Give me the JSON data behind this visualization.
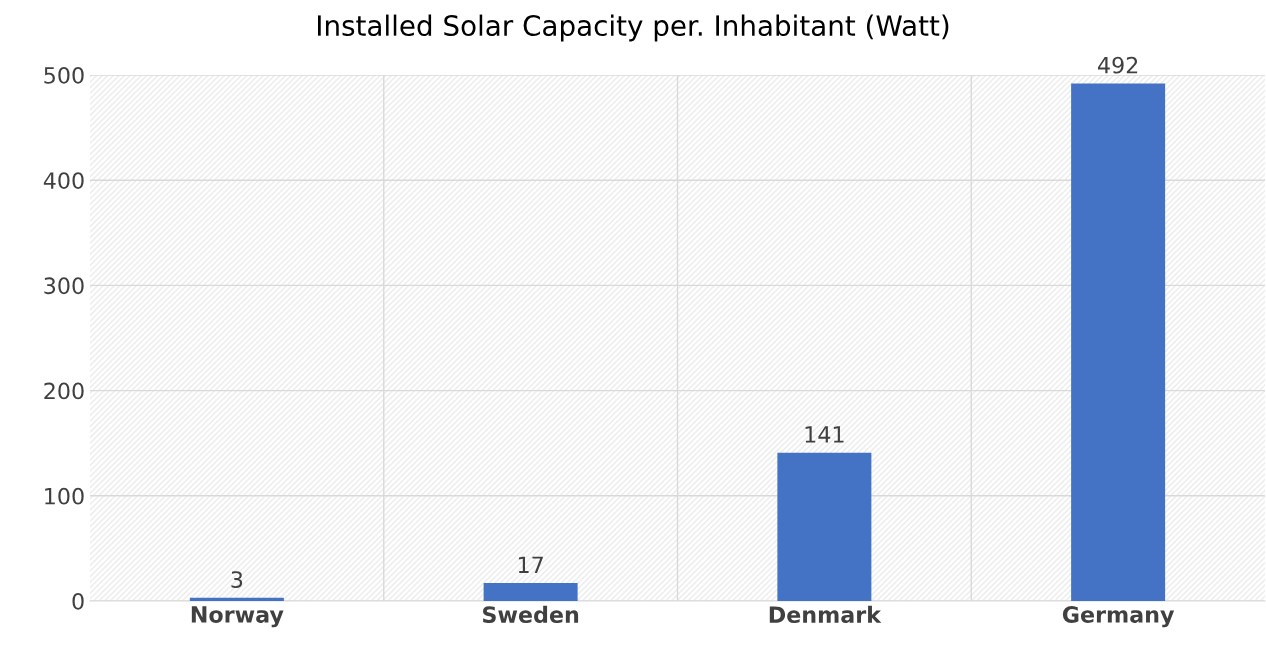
{
  "chart_data": {
    "type": "bar",
    "title": "Installed Solar Capacity per. Inhabitant (Watt)",
    "categories": [
      "Norway",
      "Sweden",
      "Denmark",
      "Germany"
    ],
    "values": [
      3,
      17,
      141,
      492
    ],
    "color": "#4472c4",
    "ylim": [
      0,
      500
    ],
    "yticks": [
      0,
      100,
      200,
      300,
      400,
      500
    ],
    "grid": true,
    "data_labels": true
  }
}
